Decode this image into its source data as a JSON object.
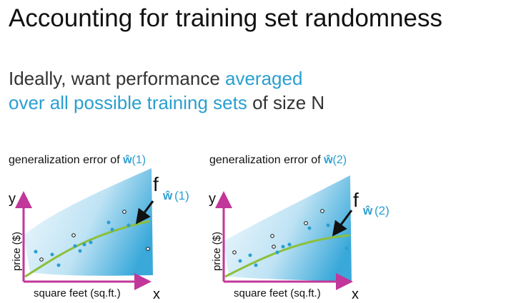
{
  "title": "Accounting for training set randomness",
  "subtitle": {
    "line1_plain": "Ideally, want performance ",
    "line1_highlight": "averaged",
    "line2_highlight": "over all possible training sets",
    "line2_plain": " of size N"
  },
  "panels": [
    {
      "title_prefix": "generalization error of ",
      "w_symbol": "ŵ",
      "index": "(1)",
      "ylabel": "price ($)",
      "xlabel": "square feet (sq.ft.)",
      "y_letter": "y",
      "x_letter": "x",
      "f_letter": "f",
      "f_sub_w": "ŵ",
      "f_sub_idx": "(1)"
    },
    {
      "title_prefix": "generalization error of ",
      "w_symbol": "ŵ",
      "index": "(2)",
      "ylabel": "price ($)",
      "xlabel": "square feet (sq.ft.)",
      "y_letter": "y",
      "x_letter": "x",
      "f_letter": "f",
      "f_sub_w": "ŵ",
      "f_sub_idx": "(2)"
    }
  ],
  "colors": {
    "accent_blue": "#2a9fd0",
    "axis_magenta": "#c2379a",
    "fit_green": "#8cbf3a",
    "band_light": "#e3f3fb",
    "band_dark": "#48b0dc"
  }
}
